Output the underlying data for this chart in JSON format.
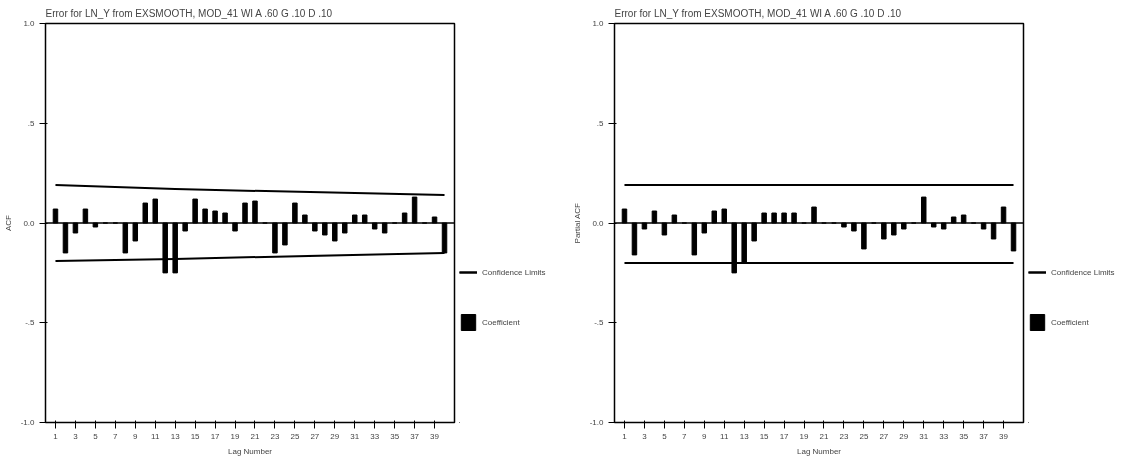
{
  "chart_data": [
    {
      "type": "bar",
      "title": "Error for LN_Y from EXSMOOTH, MOD_41 WI A .60 G .10 D .10",
      "xlabel": "Lag Number",
      "ylabel": "ACF",
      "x": [
        1,
        2,
        3,
        4,
        5,
        6,
        7,
        8,
        9,
        10,
        11,
        12,
        13,
        14,
        15,
        16,
        17,
        18,
        19,
        20,
        21,
        22,
        23,
        24,
        25,
        26,
        27,
        28,
        29,
        30,
        31,
        32,
        33,
        34,
        35,
        36,
        37,
        38,
        39,
        40
      ],
      "series": [
        {
          "name": "Confidence Limits",
          "type": "line",
          "color": "#000000",
          "x": [
            1,
            13,
            40
          ],
          "values": [
            0.19,
            0.17,
            0.14
          ]
        },
        {
          "name": "Confidence Limits",
          "type": "line",
          "color": "#000000",
          "x": [
            1,
            13,
            40
          ],
          "values": [
            -0.19,
            -0.18,
            -0.15
          ]
        },
        {
          "name": "Coefficient",
          "color": "#000000",
          "values": [
            0.07,
            -0.15,
            -0.05,
            0.07,
            -0.02,
            0,
            0,
            -0.15,
            -0.09,
            0.1,
            0.12,
            -0.25,
            -0.25,
            -0.04,
            0.12,
            0.07,
            0.06,
            0.05,
            -0.04,
            0.1,
            0.11,
            0,
            -0.15,
            -0.11,
            0.1,
            0.04,
            -0.04,
            -0.06,
            -0.09,
            -0.05,
            0.04,
            0.04,
            -0.03,
            -0.05,
            0,
            0.05,
            0.13,
            0,
            0.03,
            -0.15
          ]
        }
      ],
      "xlim": [
        0,
        41
      ],
      "xticks": [
        1,
        3,
        5,
        7,
        9,
        11,
        13,
        15,
        17,
        19,
        21,
        23,
        25,
        27,
        29,
        31,
        33,
        35,
        37,
        39
      ],
      "ylim": [
        -1,
        1
      ],
      "yticks": [
        {
          "value": -1,
          "label": "-1.0"
        },
        {
          "value": -0.5,
          "label": "-.5"
        },
        {
          "value": 0,
          "label": "0.0"
        },
        {
          "value": 0.5,
          "label": ".5"
        },
        {
          "value": 1,
          "label": "1.0"
        }
      ],
      "ref_lines": [
        {
          "axis": "y",
          "value": 0,
          "color": "#000000"
        }
      ],
      "grid": false,
      "legend": "right"
    },
    {
      "type": "bar",
      "title": "Error for LN_Y from EXSMOOTH, MOD_41 WI A .60 G .10 D .10",
      "xlabel": "Lag Number",
      "ylabel": "Partial ACF",
      "x": [
        1,
        2,
        3,
        4,
        5,
        6,
        7,
        8,
        9,
        10,
        11,
        12,
        13,
        14,
        15,
        16,
        17,
        18,
        19,
        20,
        21,
        22,
        23,
        24,
        25,
        26,
        27,
        28,
        29,
        30,
        31,
        32,
        33,
        34,
        35,
        36,
        37,
        38,
        39,
        40
      ],
      "series": [
        {
          "name": "Confidence Limits",
          "type": "line",
          "color": "#000000",
          "x": [
            1,
            40
          ],
          "values": [
            0.19,
            0.19
          ]
        },
        {
          "name": "Confidence Limits",
          "type": "line",
          "color": "#000000",
          "x": [
            1,
            40
          ],
          "values": [
            -0.2,
            -0.2
          ]
        },
        {
          "name": "Coefficient",
          "color": "#000000",
          "values": [
            0.07,
            -0.16,
            -0.03,
            0.06,
            -0.06,
            0.04,
            0,
            -0.16,
            -0.05,
            0.06,
            0.07,
            -0.25,
            -0.2,
            -0.09,
            0.05,
            0.05,
            0.05,
            0.05,
            0,
            0.08,
            0,
            0,
            -0.02,
            -0.04,
            -0.13,
            0,
            -0.08,
            -0.06,
            -0.03,
            0,
            0.13,
            -0.02,
            -0.03,
            0.03,
            0.04,
            0,
            -0.03,
            -0.08,
            0.08,
            -0.14
          ]
        }
      ],
      "xlim": [
        0,
        41
      ],
      "xticks": [
        1,
        3,
        5,
        7,
        9,
        11,
        13,
        15,
        17,
        19,
        21,
        23,
        25,
        27,
        29,
        31,
        33,
        35,
        37,
        39
      ],
      "ylim": [
        -1,
        1
      ],
      "yticks": [
        {
          "value": -1,
          "label": "-1.0"
        },
        {
          "value": -0.5,
          "label": "-.5"
        },
        {
          "value": 0,
          "label": "0.0"
        },
        {
          "value": 0.5,
          "label": ".5"
        },
        {
          "value": 1,
          "label": "1.0"
        }
      ],
      "ref_lines": [
        {
          "axis": "y",
          "value": 0,
          "color": "#000000"
        }
      ],
      "grid": false,
      "legend": "right"
    }
  ]
}
